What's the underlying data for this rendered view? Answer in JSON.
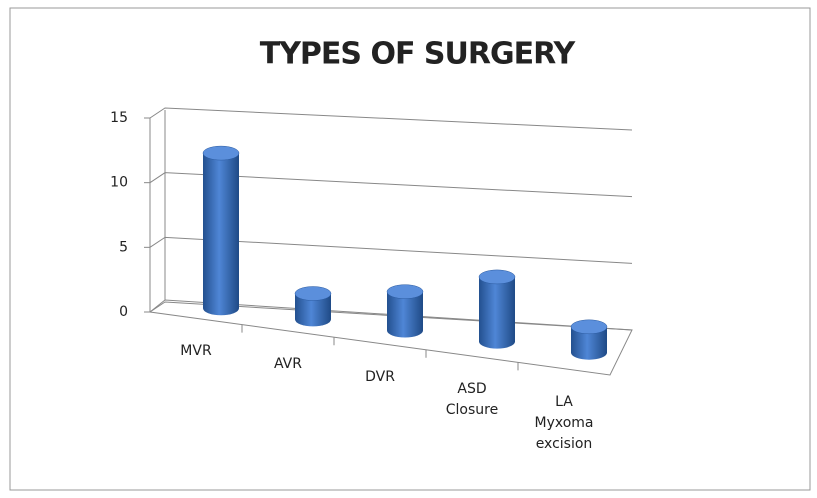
{
  "chart_data": {
    "type": "bar",
    "title": "TYPES OF SURGERY",
    "categories": [
      "MVR",
      "AVR",
      "DVR",
      "ASD Closure",
      "LA Myxoma excision"
    ],
    "values": [
      12,
      2,
      3,
      5,
      2
    ],
    "color": "#3a6fc4",
    "ylim": [
      0,
      15
    ],
    "yticks": [
      0,
      5,
      10,
      15
    ],
    "grid": true
  }
}
